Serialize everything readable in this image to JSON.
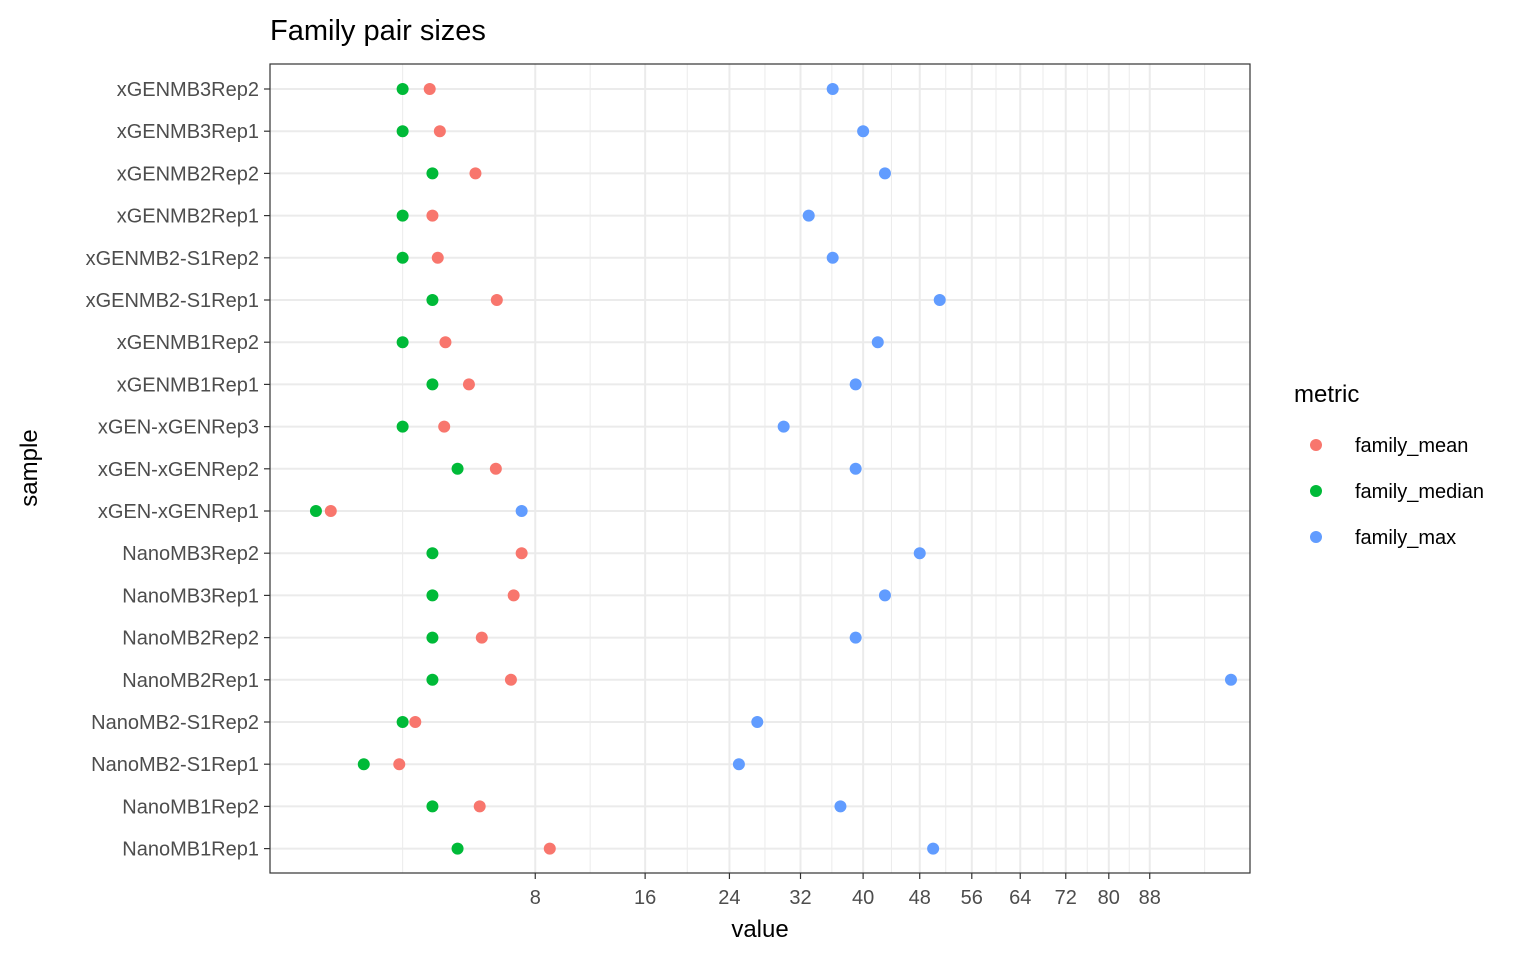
{
  "chart_data": {
    "type": "scatter",
    "title": "Family pair sizes",
    "xlabel": "value",
    "ylabel": "sample",
    "x_scale": "sqrt",
    "xlim": [
      0,
      109.2
    ],
    "x_ticks": [
      8,
      16,
      24,
      32,
      40,
      48,
      56,
      64,
      72,
      80,
      88
    ],
    "x_tick_labels": [
      "8",
      "16",
      "24",
      "32",
      "40",
      "48",
      "56",
      "64",
      "72",
      "80",
      "88"
    ],
    "grid": true,
    "legend": {
      "title": "metric",
      "position": "right",
      "entries": [
        {
          "name": "family_mean",
          "color": "#F8766D"
        },
        {
          "name": "family_median",
          "color": "#00BA38"
        },
        {
          "name": "family_max",
          "color": "#619CFF"
        }
      ]
    },
    "categories": [
      "xGENMB3Rep2",
      "xGENMB3Rep1",
      "xGENMB2Rep2",
      "xGENMB2Rep1",
      "xGENMB2-S1Rep2",
      "xGENMB2-S1Rep1",
      "xGENMB1Rep2",
      "xGENMB1Rep1",
      "xGEN-xGENRep3",
      "xGEN-xGENRep2",
      "xGEN-xGENRep1",
      "NanoMB3Rep2",
      "NanoMB3Rep1",
      "NanoMB2Rep2",
      "NanoMB2Rep1",
      "NanoMB2-S1Rep2",
      "NanoMB2-S1Rep1",
      "NanoMB1Rep2",
      "NanoMB1Rep1"
    ],
    "series": [
      {
        "name": "family_mean",
        "color": "#F8766D",
        "values": [
          2.9,
          3.28,
          4.8,
          3.0,
          3.2,
          5.85,
          3.5,
          4.5,
          3.45,
          5.8,
          0.42,
          7.2,
          6.75,
          5.1,
          6.6,
          2.4,
          1.9,
          5.0,
          8.9
        ]
      },
      {
        "name": "family_median",
        "color": "#00BA38",
        "values": [
          2,
          2,
          3,
          2,
          2,
          3,
          2,
          3,
          2,
          4,
          0.24,
          3,
          3,
          3,
          3,
          2,
          1,
          3,
          4
        ]
      },
      {
        "name": "family_max",
        "color": "#619CFF",
        "values": [
          36,
          40,
          43,
          33,
          36,
          51,
          42,
          39,
          30,
          39,
          7.2,
          48,
          43,
          39,
          105,
          27,
          25,
          37,
          50
        ]
      }
    ]
  }
}
